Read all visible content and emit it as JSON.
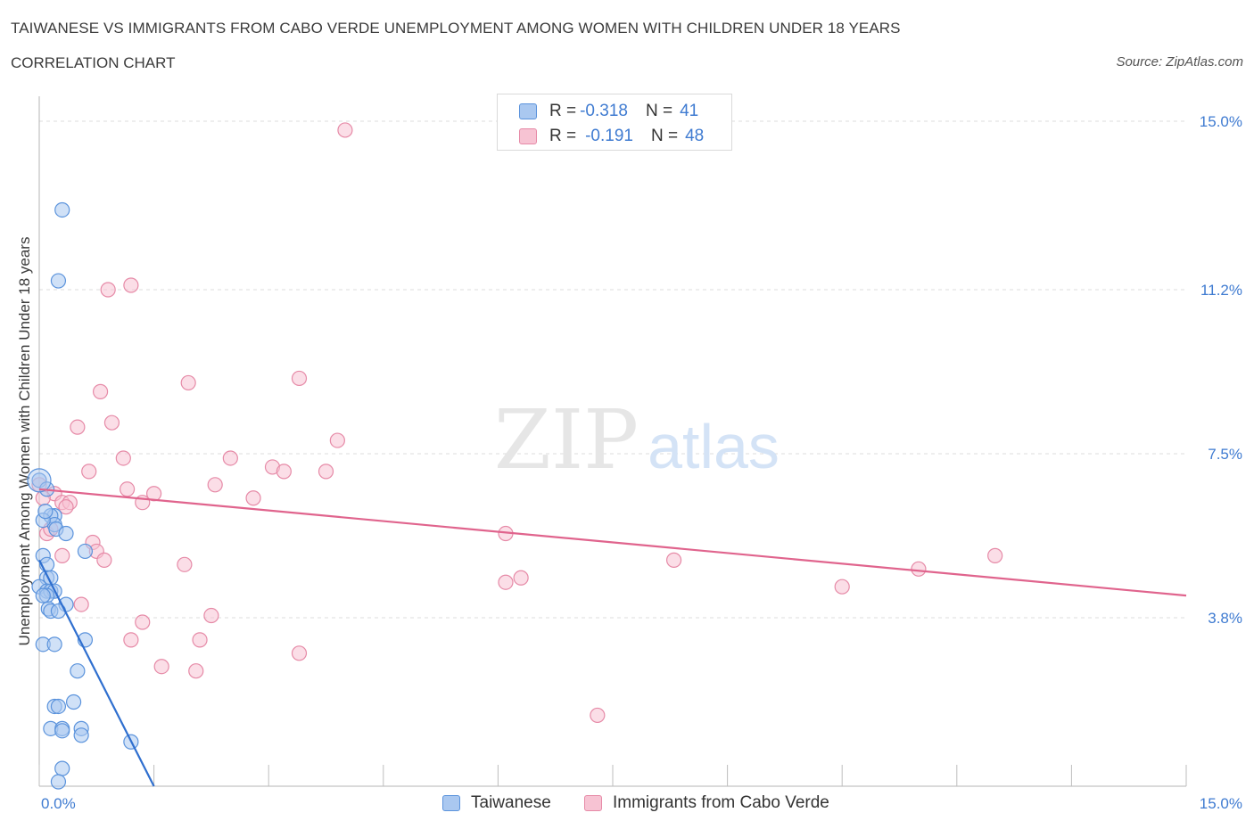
{
  "header": {
    "title": "TAIWANESE VS IMMIGRANTS FROM CABO VERDE UNEMPLOYMENT AMONG WOMEN WITH CHILDREN UNDER 18 YEARS",
    "subtitle": "CORRELATION CHART",
    "source": "Source: ZipAtlas.com"
  },
  "watermark": {
    "zip": "ZIP",
    "atlas": "atlas"
  },
  "legend": {
    "rows": [
      {
        "r_label": "R = ",
        "r_value": "-0.318",
        "n_label": "N = ",
        "n_value": "41"
      },
      {
        "r_label": "R = ",
        "r_value": "-0.191",
        "n_label": "N = ",
        "n_value": "48"
      }
    ]
  },
  "colors": {
    "blue_fill": "#aac8f0",
    "blue_stroke": "#5b93dc",
    "blue_line": "#2f6fcf",
    "pink_fill": "#f7c3d3",
    "pink_stroke": "#e68aa7",
    "pink_line": "#e0648d",
    "grid": "#dcdcdc",
    "axis_text": "#3f7bd1"
  },
  "chart_data": {
    "type": "scatter",
    "title": "TAIWANESE VS IMMIGRANTS FROM CABO VERDE UNEMPLOYMENT AMONG WOMEN WITH CHILDREN UNDER 18 YEARS",
    "xlabel": "",
    "ylabel": "Unemployment Among Women with Children Under 18 years",
    "xlim": [
      0,
      15
    ],
    "ylim": [
      0,
      15
    ],
    "x_ticks": [
      "0.0%",
      "15.0%"
    ],
    "y_ticks": [
      {
        "value": 15.0,
        "label": "15.0%"
      },
      {
        "value": 11.2,
        "label": "11.2%"
      },
      {
        "value": 7.5,
        "label": "7.5%"
      },
      {
        "value": 3.8,
        "label": "3.8%"
      }
    ],
    "series": [
      {
        "name": "Taiwanese",
        "color": "#5b93dc",
        "trend": {
          "x0": 0.0,
          "y0": 5.1,
          "x1": 1.5,
          "y1": 0.0
        },
        "points": [
          [
            0.3,
            13.0
          ],
          [
            0.25,
            11.4
          ],
          [
            0.0,
            6.9
          ],
          [
            0.1,
            6.7
          ],
          [
            0.2,
            6.1
          ],
          [
            0.15,
            6.1
          ],
          [
            0.2,
            5.9
          ],
          [
            0.22,
            5.8
          ],
          [
            0.35,
            5.7
          ],
          [
            0.05,
            5.2
          ],
          [
            0.1,
            5.0
          ],
          [
            0.1,
            4.7
          ],
          [
            0.15,
            4.7
          ],
          [
            0.0,
            4.5
          ],
          [
            0.1,
            4.4
          ],
          [
            0.15,
            4.4
          ],
          [
            0.2,
            4.4
          ],
          [
            0.1,
            4.3
          ],
          [
            0.05,
            4.3
          ],
          [
            0.35,
            4.1
          ],
          [
            0.12,
            4.0
          ],
          [
            0.15,
            3.95
          ],
          [
            0.25,
            3.95
          ],
          [
            0.05,
            3.2
          ],
          [
            0.2,
            3.2
          ],
          [
            0.6,
            5.3
          ],
          [
            0.6,
            3.3
          ],
          [
            0.5,
            2.6
          ],
          [
            0.45,
            1.9
          ],
          [
            0.2,
            1.8
          ],
          [
            0.25,
            1.8
          ],
          [
            0.15,
            1.3
          ],
          [
            0.3,
            1.3
          ],
          [
            0.3,
            1.25
          ],
          [
            0.55,
            1.3
          ],
          [
            0.55,
            1.15
          ],
          [
            1.2,
            1.0
          ],
          [
            0.3,
            0.4
          ],
          [
            0.25,
            0.1
          ],
          [
            0.05,
            6.0
          ],
          [
            0.08,
            6.2
          ]
        ]
      },
      {
        "name": "Immigrants from Cabo Verde",
        "color": "#e68aa7",
        "trend": {
          "x0": 0.0,
          "y0": 6.7,
          "x1": 15.0,
          "y1": 4.3
        },
        "points": [
          [
            4.0,
            14.8
          ],
          [
            0.9,
            11.2
          ],
          [
            1.2,
            11.3
          ],
          [
            3.4,
            9.2
          ],
          [
            1.95,
            9.1
          ],
          [
            0.8,
            8.9
          ],
          [
            0.5,
            8.1
          ],
          [
            0.95,
            8.2
          ],
          [
            3.9,
            7.8
          ],
          [
            0.65,
            7.1
          ],
          [
            1.1,
            7.4
          ],
          [
            2.5,
            7.4
          ],
          [
            3.05,
            7.2
          ],
          [
            3.2,
            7.1
          ],
          [
            3.75,
            7.1
          ],
          [
            0.0,
            6.8
          ],
          [
            0.2,
            6.6
          ],
          [
            0.05,
            6.5
          ],
          [
            0.3,
            6.4
          ],
          [
            0.4,
            6.4
          ],
          [
            0.35,
            6.3
          ],
          [
            1.15,
            6.7
          ],
          [
            1.5,
            6.6
          ],
          [
            2.3,
            6.8
          ],
          [
            2.8,
            6.5
          ],
          [
            1.35,
            6.4
          ],
          [
            0.1,
            5.7
          ],
          [
            0.15,
            5.8
          ],
          [
            0.3,
            5.2
          ],
          [
            0.7,
            5.5
          ],
          [
            0.75,
            5.3
          ],
          [
            0.85,
            5.1
          ],
          [
            1.9,
            5.0
          ],
          [
            6.1,
            5.7
          ],
          [
            6.1,
            4.6
          ],
          [
            6.3,
            4.7
          ],
          [
            8.3,
            5.1
          ],
          [
            10.5,
            4.5
          ],
          [
            11.5,
            4.9
          ],
          [
            12.5,
            5.2
          ],
          [
            0.55,
            4.1
          ],
          [
            1.35,
            3.7
          ],
          [
            2.25,
            3.85
          ],
          [
            1.2,
            3.3
          ],
          [
            2.1,
            3.3
          ],
          [
            3.4,
            3.0
          ],
          [
            1.6,
            2.7
          ],
          [
            2.05,
            2.6
          ]
        ],
        "extra_points": [
          [
            7.3,
            1.6
          ]
        ]
      }
    ]
  }
}
